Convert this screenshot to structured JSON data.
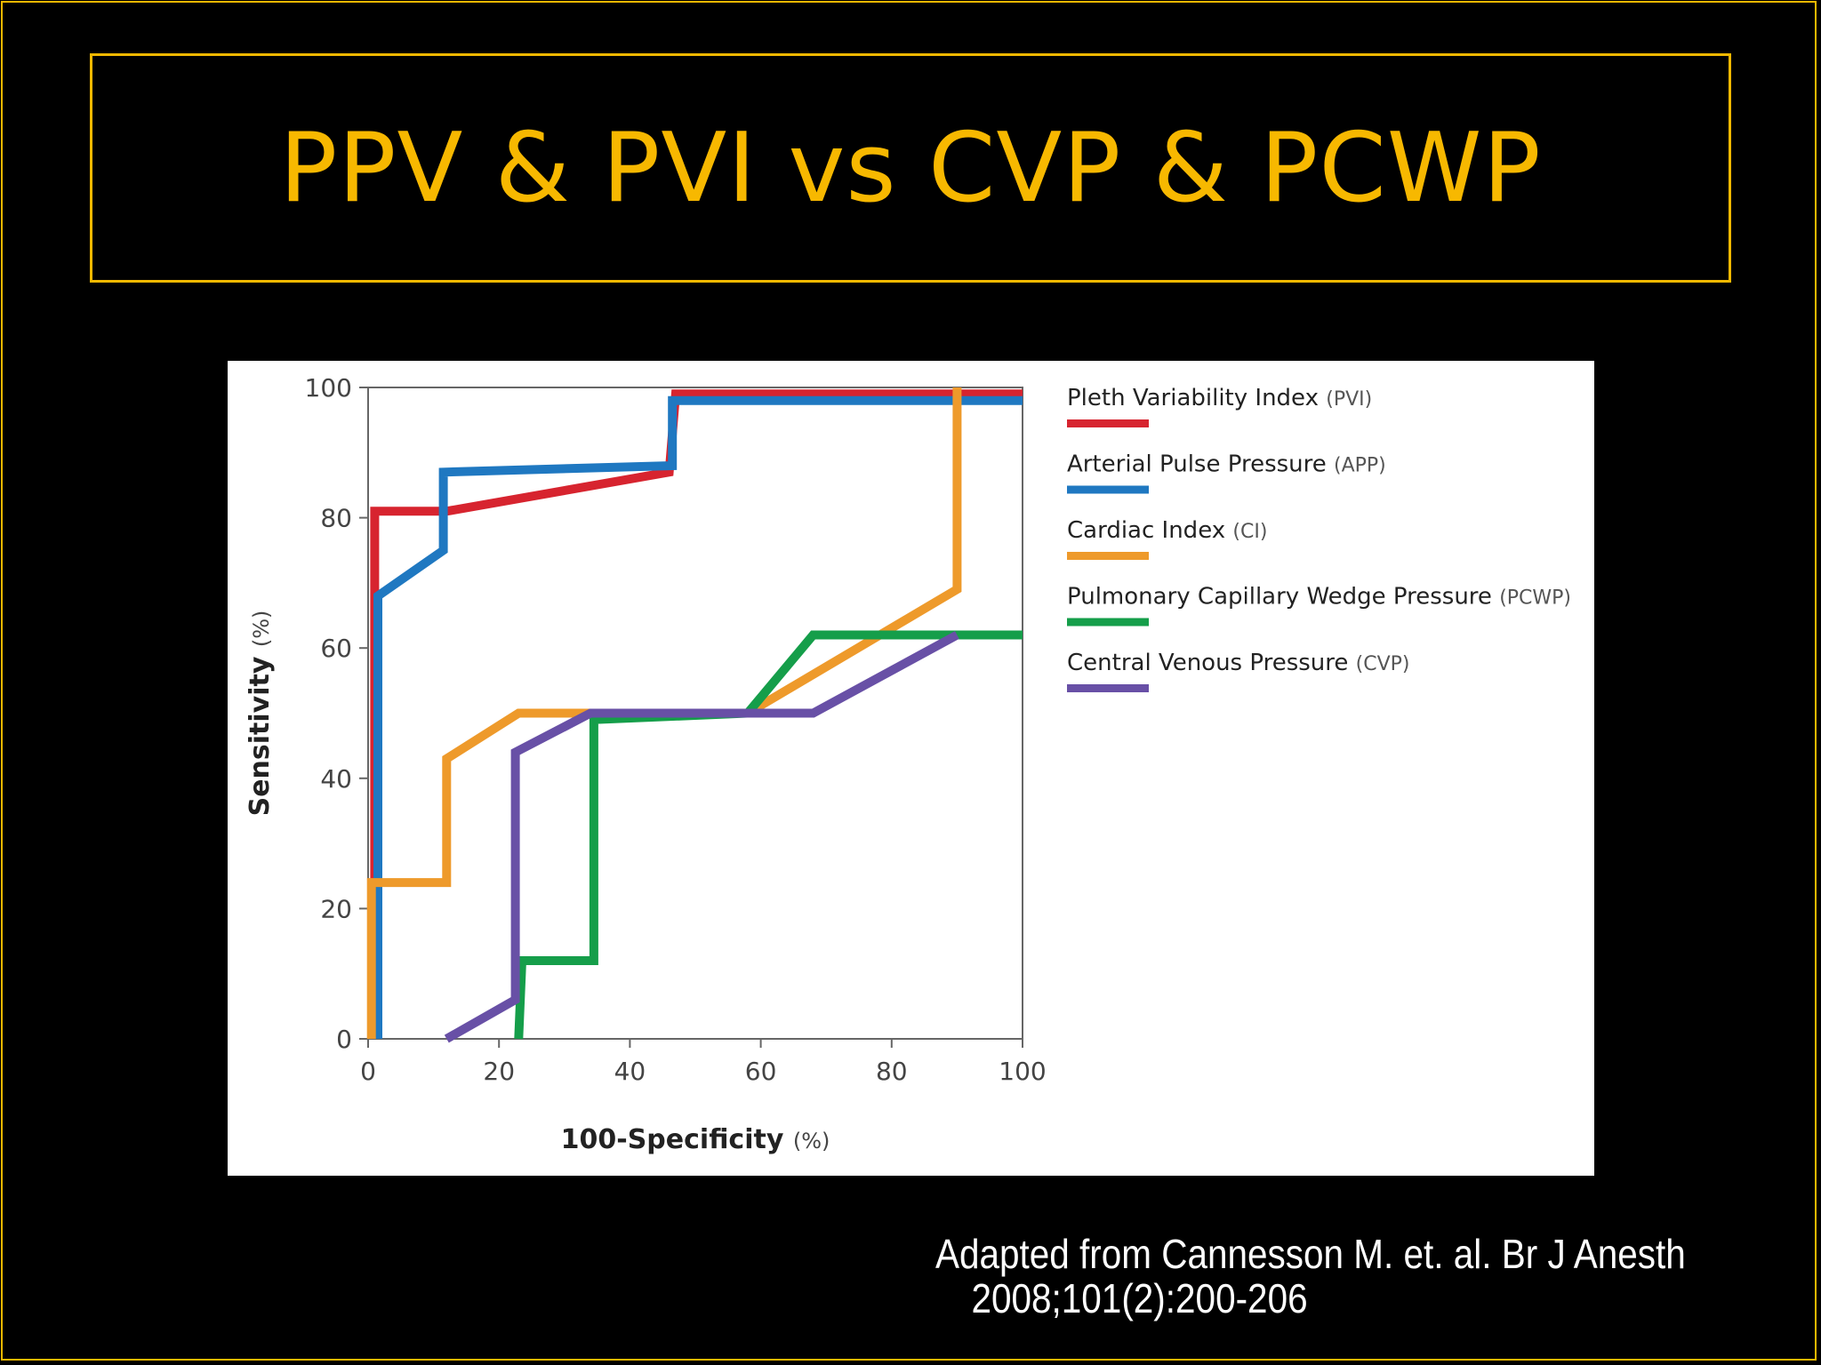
{
  "slide": {
    "title": "PPV & PVI vs CVP & PCWP",
    "citation_line1": "Adapted from Cannesson M. et. al. Br J Anesth",
    "citation_line2": "2008;101(2):200-206"
  },
  "colors": {
    "background": "#000000",
    "accent": "#f2b800",
    "title_text": "#f7b800"
  },
  "chart_data": {
    "type": "line",
    "title": "",
    "xlabel": "100-Specificity",
    "xlabel_unit": "(%)",
    "ylabel": "Sensitivity",
    "ylabel_unit": "(%)",
    "xlim": [
      0,
      100
    ],
    "ylim": [
      0,
      100
    ],
    "xticks": [
      0,
      20,
      40,
      60,
      80,
      100
    ],
    "yticks": [
      0,
      20,
      40,
      60,
      80,
      100
    ],
    "grid": false,
    "legend_position": "right",
    "series": [
      {
        "name": "Pleth Variability Index",
        "abbr": "(PVI)",
        "color": "#d7242f",
        "points": [
          [
            1,
            0
          ],
          [
            1,
            81
          ],
          [
            12,
            81
          ],
          [
            46,
            87
          ],
          [
            47,
            99
          ],
          [
            100,
            99
          ]
        ]
      },
      {
        "name": "Arterial Pulse Pressure",
        "abbr": "(APP)",
        "color": "#1f78c1",
        "points": [
          [
            1.5,
            0
          ],
          [
            1.5,
            68
          ],
          [
            11.5,
            75
          ],
          [
            11.5,
            87
          ],
          [
            46.5,
            88
          ],
          [
            46.5,
            98
          ],
          [
            100,
            98
          ]
        ]
      },
      {
        "name": "Cardiac Index",
        "abbr": "(CI)",
        "color": "#ee9a2b",
        "points": [
          [
            0.5,
            0
          ],
          [
            0.5,
            24
          ],
          [
            12,
            24
          ],
          [
            12,
            43
          ],
          [
            23,
            50
          ],
          [
            35,
            50
          ],
          [
            58,
            50
          ],
          [
            90,
            69
          ],
          [
            90,
            100
          ]
        ]
      },
      {
        "name": "Pulmonary Capillary Wedge Pressure",
        "abbr": "(PCWP)",
        "color": "#159e4a",
        "points": [
          [
            23,
            0
          ],
          [
            23.5,
            12
          ],
          [
            34.5,
            12
          ],
          [
            34.5,
            49
          ],
          [
            58,
            50
          ],
          [
            68,
            62
          ],
          [
            100,
            62
          ]
        ]
      },
      {
        "name": "Central Venous Pressure",
        "abbr": "(CVP)",
        "color": "#6850a6",
        "points": [
          [
            12,
            0
          ],
          [
            22.5,
            6
          ],
          [
            22.5,
            44
          ],
          [
            34,
            50
          ],
          [
            58,
            50
          ],
          [
            68,
            50
          ],
          [
            90,
            62
          ]
        ]
      }
    ]
  }
}
